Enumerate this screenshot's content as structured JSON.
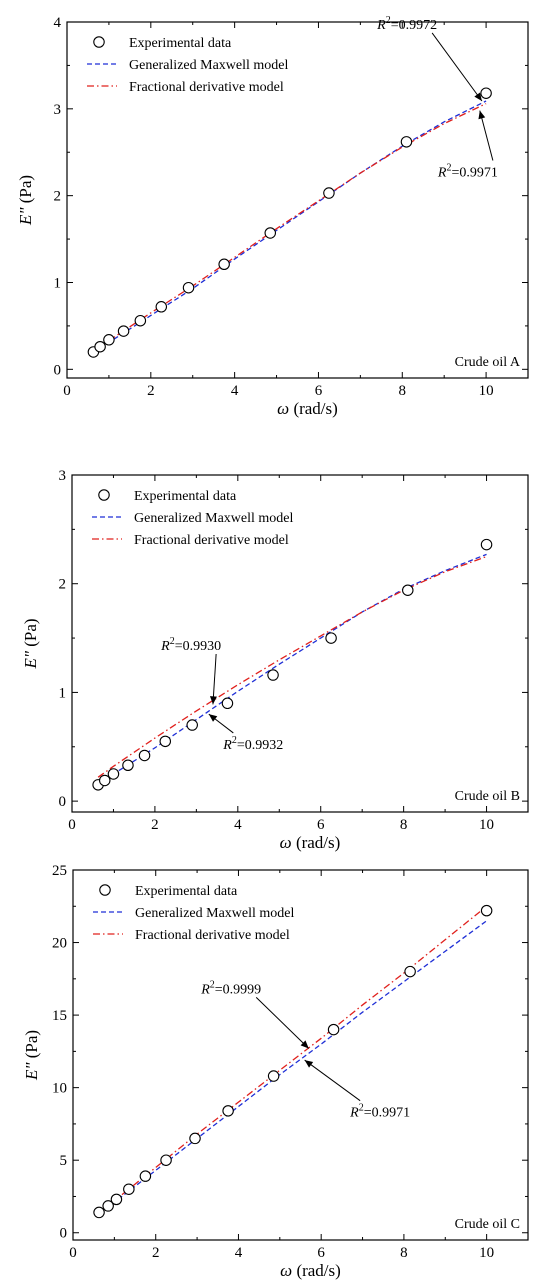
{
  "chart_data": [
    {
      "type": "scatter",
      "panel_label": "Crude oil A",
      "xlabel_symbol": "ω",
      "xlabel_unit": "(rad/s)",
      "ylabel_symbol": "E\"",
      "ylabel_unit": "(Pa)",
      "xlim": [
        0,
        11
      ],
      "ylim": [
        -0.1,
        4
      ],
      "xticks": [
        0,
        2,
        4,
        6,
        8,
        10
      ],
      "yticks": [
        0,
        1,
        2,
        3,
        4
      ],
      "legend_position": "top-left",
      "grid": false,
      "series": [
        {
          "name": "Experimental data",
          "style": "open-circle",
          "color": "#000000",
          "x": [
            0.63,
            0.79,
            1.0,
            1.35,
            1.75,
            2.25,
            2.9,
            3.75,
            4.85,
            6.25,
            8.1,
            10.0
          ],
          "y": [
            0.2,
            0.26,
            0.34,
            0.44,
            0.56,
            0.72,
            0.94,
            1.21,
            1.57,
            2.03,
            2.62,
            3.18
          ]
        },
        {
          "name": "Generalized Maxwell model",
          "style": "dashed",
          "color": "#1f2fd6",
          "x": [
            0.63,
            1.0,
            2.0,
            3.0,
            4.0,
            5.0,
            6.0,
            7.0,
            8.0,
            9.0,
            10.0
          ],
          "y": [
            0.2,
            0.31,
            0.62,
            0.93,
            1.27,
            1.6,
            1.93,
            2.26,
            2.57,
            2.85,
            3.09
          ]
        },
        {
          "name": "Fractional derivative model",
          "style": "dash-dot",
          "color": "#e0201c",
          "x": [
            0.63,
            1.0,
            2.0,
            3.0,
            4.0,
            5.0,
            6.0,
            7.0,
            8.0,
            9.0,
            10.0
          ],
          "y": [
            0.21,
            0.33,
            0.65,
            0.96,
            1.29,
            1.62,
            1.94,
            2.26,
            2.56,
            2.83,
            3.06
          ]
        }
      ],
      "annotations": [
        {
          "label": "R",
          "sup": "2",
          "value": "=0.9972",
          "at": [
            9.9,
            3.09
          ],
          "text_pos": [
            7.4,
            3.92
          ],
          "anchor": "start"
        },
        {
          "label": "R",
          "sup": "2",
          "value": "=0.9971",
          "at": [
            9.85,
            2.98
          ],
          "text_pos": [
            8.85,
            2.22
          ],
          "anchor": "start"
        }
      ]
    },
    {
      "type": "scatter",
      "panel_label": "Crude oil B",
      "xlabel_symbol": "ω",
      "xlabel_unit": "(rad/s)",
      "ylabel_symbol": "E\"",
      "ylabel_unit": "(Pa)",
      "xlim": [
        0,
        11
      ],
      "ylim": [
        -0.1,
        3
      ],
      "xticks": [
        0,
        2,
        4,
        6,
        8,
        10
      ],
      "yticks": [
        0,
        1,
        2,
        3
      ],
      "legend_position": "top-left",
      "grid": false,
      "series": [
        {
          "name": "Experimental data",
          "style": "open-circle",
          "color": "#000000",
          "x": [
            0.63,
            0.79,
            1.0,
            1.35,
            1.75,
            2.25,
            2.9,
            3.75,
            4.85,
            6.25,
            8.1,
            10.0
          ],
          "y": [
            0.15,
            0.19,
            0.25,
            0.33,
            0.42,
            0.55,
            0.7,
            0.9,
            1.16,
            1.5,
            1.94,
            2.36
          ]
        },
        {
          "name": "Generalized Maxwell model",
          "style": "dashed",
          "color": "#1f2fd6",
          "x": [
            0.63,
            1.0,
            2.0,
            3.0,
            4.0,
            5.0,
            6.0,
            7.0,
            8.0,
            9.0,
            10.0
          ],
          "y": [
            0.17,
            0.25,
            0.49,
            0.75,
            1.01,
            1.26,
            1.5,
            1.74,
            1.95,
            2.12,
            2.27
          ]
        },
        {
          "name": "Fractional derivative model",
          "style": "dash-dot",
          "color": "#e0201c",
          "x": [
            0.63,
            1.0,
            2.0,
            3.0,
            4.0,
            5.0,
            6.0,
            7.0,
            8.0,
            9.0,
            10.0
          ],
          "y": [
            0.22,
            0.32,
            0.58,
            0.83,
            1.07,
            1.3,
            1.52,
            1.74,
            1.94,
            2.11,
            2.25
          ]
        }
      ],
      "annotations": [
        {
          "label": "R",
          "sup": "2",
          "value": "=0.9930",
          "at": [
            3.4,
            0.89
          ],
          "text_pos": [
            2.15,
            1.39
          ],
          "anchor": "start"
        },
        {
          "label": "R",
          "sup": "2",
          "value": "=0.9932",
          "at": [
            3.3,
            0.8
          ],
          "text_pos": [
            3.65,
            0.48
          ],
          "anchor": "start"
        }
      ]
    },
    {
      "type": "scatter",
      "panel_label": "Crude oil C",
      "xlabel_symbol": "ω",
      "xlabel_unit": "(rad/s)",
      "ylabel_symbol": "E\"",
      "ylabel_unit": "(Pa)",
      "xlim": [
        0,
        11
      ],
      "ylim": [
        -0.5,
        25
      ],
      "xticks": [
        0,
        2,
        4,
        6,
        8,
        10
      ],
      "yticks": [
        0,
        5,
        10,
        15,
        20,
        25
      ],
      "legend_position": "top-left",
      "grid": false,
      "series": [
        {
          "name": "Experimental data",
          "style": "open-circle",
          "color": "#000000",
          "x": [
            0.63,
            0.85,
            1.05,
            1.35,
            1.75,
            2.25,
            2.95,
            3.75,
            4.85,
            6.3,
            8.15,
            10.0
          ],
          "y": [
            1.4,
            1.85,
            2.3,
            3.0,
            3.9,
            5.0,
            6.5,
            8.4,
            10.8,
            14.0,
            18.0,
            22.2
          ]
        },
        {
          "name": "Generalized Maxwell model",
          "style": "dashed",
          "color": "#1f2fd6",
          "x": [
            0.63,
            1.0,
            2.0,
            3.0,
            4.0,
            5.0,
            6.0,
            7.0,
            8.0,
            9.0,
            10.0
          ],
          "y": [
            1.3,
            2.1,
            4.3,
            6.5,
            8.7,
            10.9,
            13.0,
            15.2,
            17.3,
            19.4,
            21.5
          ]
        },
        {
          "name": "Fractional derivative model",
          "style": "dash-dot",
          "color": "#e0201c",
          "x": [
            0.63,
            1.0,
            2.0,
            3.0,
            4.0,
            5.0,
            6.0,
            7.0,
            8.0,
            9.0,
            10.0
          ],
          "y": [
            1.4,
            2.2,
            4.5,
            6.8,
            9.0,
            11.2,
            13.4,
            15.7,
            17.9,
            20.2,
            22.5
          ]
        }
      ],
      "annotations": [
        {
          "label": "R",
          "sup": "2",
          "value": "=0.9999",
          "at": [
            5.7,
            12.7
          ],
          "text_pos": [
            3.1,
            16.5
          ],
          "anchor": "start"
        },
        {
          "label": "R",
          "sup": "2",
          "value": "=0.9971",
          "at": [
            5.6,
            11.9
          ],
          "text_pos": [
            6.7,
            8.0
          ],
          "anchor": "start"
        }
      ]
    }
  ]
}
